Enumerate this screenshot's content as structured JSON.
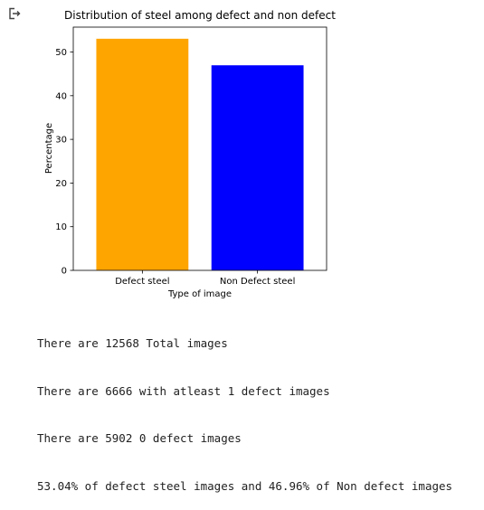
{
  "output_icon": "output-arrow-icon",
  "chart_data": {
    "type": "bar",
    "title": "Distribution of steel among defect and non defect",
    "xlabel": "Type of image",
    "ylabel": "Percentage",
    "categories": [
      "Defect steel",
      "Non Defect steel"
    ],
    "values": [
      53.04,
      46.96
    ],
    "colors": [
      "#ffa500",
      "#0000ff"
    ],
    "ylim": [
      0,
      55.7
    ],
    "yticks": [
      0,
      10,
      20,
      30,
      40,
      50
    ],
    "grid": false
  },
  "stdout": {
    "lines": [
      "There are 12568 Total images",
      "There are 6666 with atleast 1 defect images",
      "There are 5902 0 defect images",
      "53.04% of defect steel images and 46.96% of Non defect images"
    ]
  }
}
